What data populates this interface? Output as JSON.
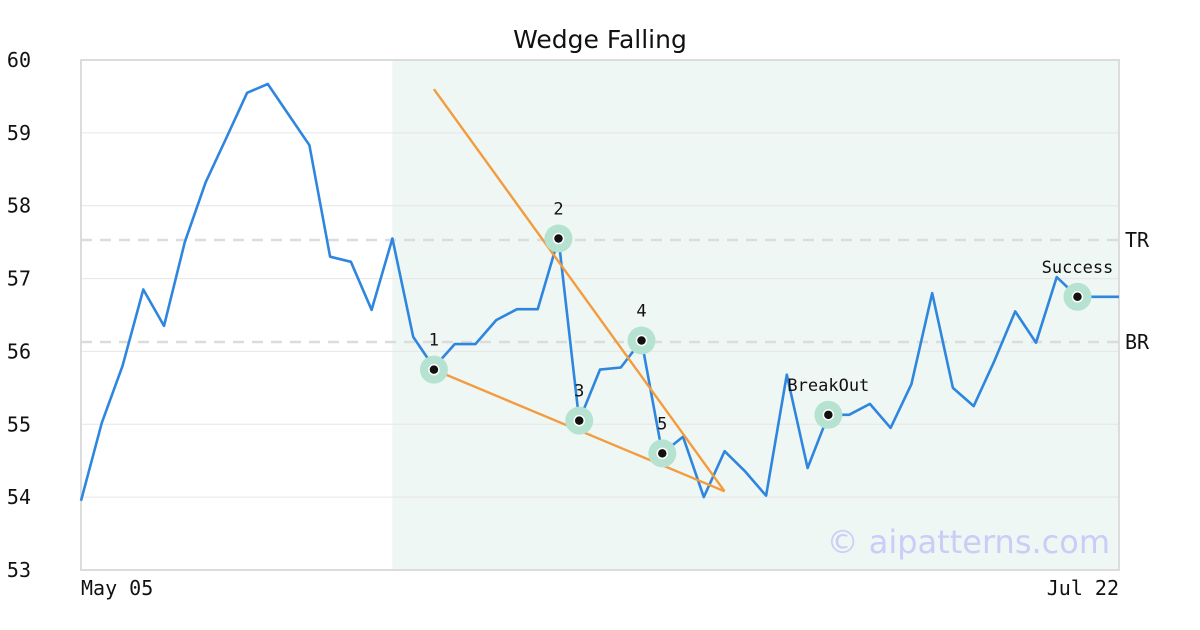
{
  "chart_data": {
    "type": "line",
    "title": "Wedge Falling",
    "x_tick_labels": [
      "May 05",
      "Jul 22"
    ],
    "ylim": [
      53,
      60
    ],
    "y_ticks": [
      53,
      54,
      55,
      56,
      57,
      58,
      59,
      60
    ],
    "grid": true,
    "series": [
      {
        "color": "#2e86de",
        "values": [
          53.95,
          55.02,
          55.8,
          56.85,
          56.35,
          57.5,
          58.32,
          58.93,
          59.55,
          59.67,
          59.25,
          58.83,
          57.3,
          57.23,
          56.57,
          57.55,
          56.2,
          55.78,
          56.1,
          56.1,
          56.43,
          56.58,
          56.58,
          57.55,
          55.05,
          55.75,
          55.78,
          56.15,
          54.6,
          54.83,
          54.0,
          54.63,
          54.35,
          54.02,
          55.68,
          54.4,
          55.13,
          55.13,
          55.28,
          54.95,
          55.55,
          56.8,
          55.5,
          55.25,
          55.87,
          56.55,
          56.12,
          57.02,
          56.75,
          56.75,
          56.75
        ]
      }
    ],
    "highlight_region": {
      "start_index": 15,
      "end_index": 50,
      "color": "#eef7f3"
    },
    "levels": [
      {
        "label": "TR",
        "value": 57.53
      },
      {
        "label": "BR",
        "value": 56.13
      }
    ],
    "trendlines": [
      {
        "color": "#f39c3f",
        "points": [
          [
            17,
            59.6
          ],
          [
            31,
            54.08
          ]
        ]
      },
      {
        "color": "#f39c3f",
        "points": [
          [
            17,
            55.75
          ],
          [
            31,
            54.08
          ]
        ]
      }
    ],
    "markers": [
      {
        "label": "1",
        "index": 17,
        "value": 55.75
      },
      {
        "label": "2",
        "index": 23,
        "value": 57.55
      },
      {
        "label": "3",
        "index": 24,
        "value": 55.05
      },
      {
        "label": "4",
        "index": 27,
        "value": 56.15
      },
      {
        "label": "5",
        "index": 28,
        "value": 54.6
      },
      {
        "label": "BreakOut",
        "index": 36,
        "value": 55.13
      },
      {
        "label": "Success",
        "index": 48,
        "value": 56.75
      }
    ],
    "watermark": "© aipatterns.com"
  }
}
